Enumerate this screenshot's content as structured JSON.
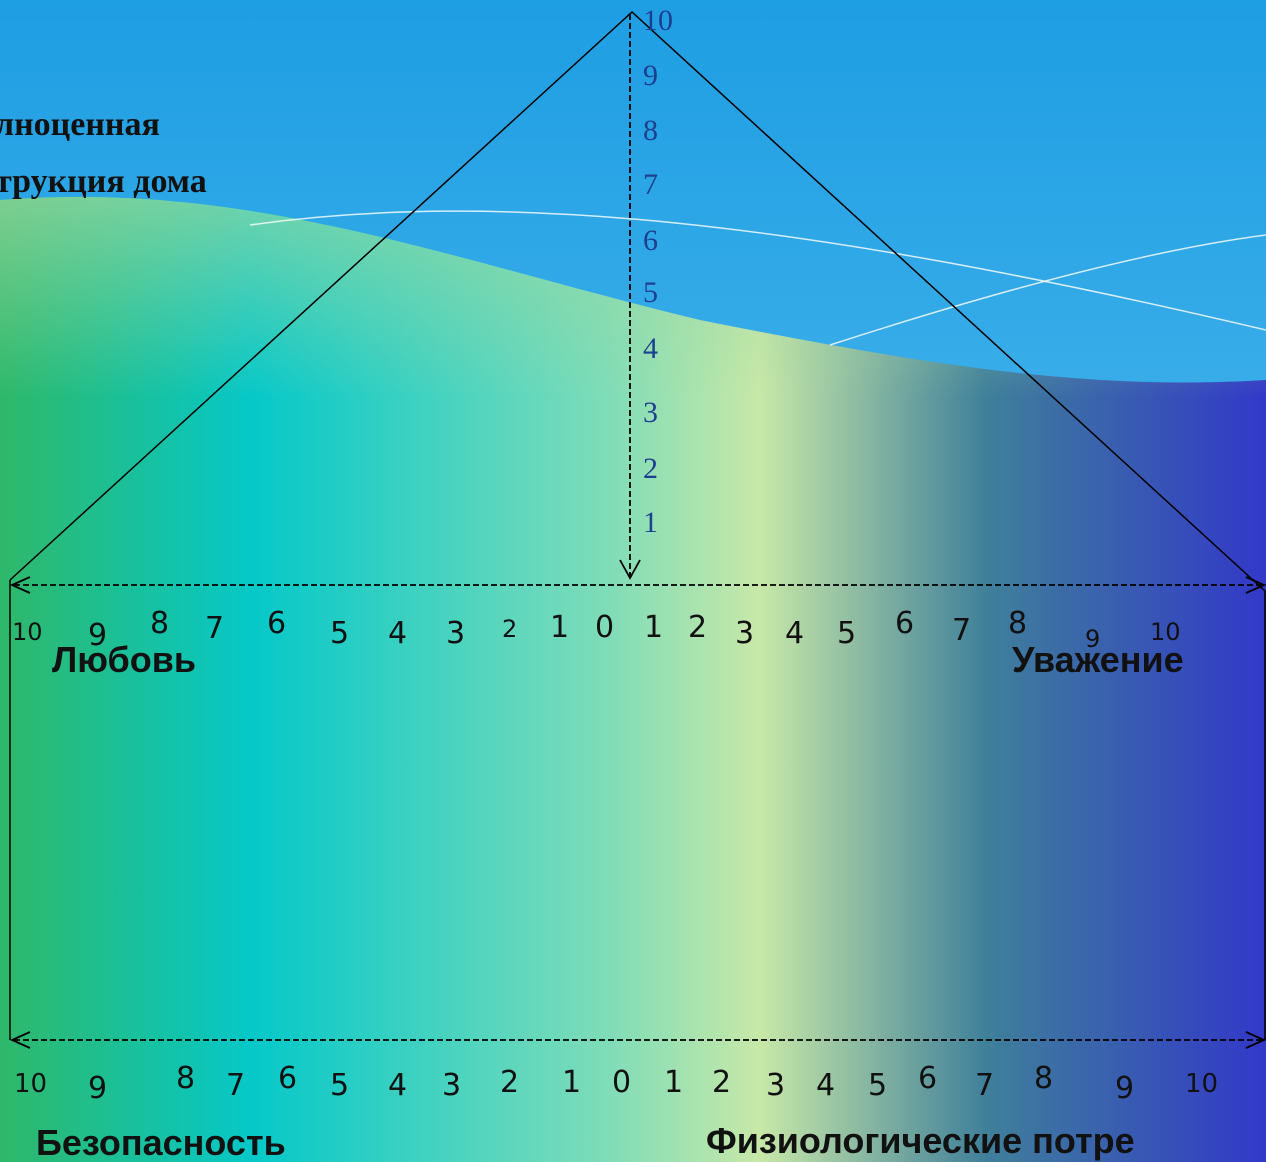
{
  "title": {
    "lines": [
      "лноценная",
      "трукция дома"
    ]
  },
  "vertical_scale": [
    10,
    9,
    8,
    7,
    6,
    5,
    4,
    3,
    2,
    1
  ],
  "top_scale": [
    10,
    9,
    8,
    7,
    6,
    5,
    4,
    3,
    2,
    1,
    0,
    1,
    2,
    3,
    4,
    5,
    6,
    7,
    8,
    9,
    10
  ],
  "bottom_scale": [
    10,
    9,
    8,
    7,
    6,
    5,
    4,
    3,
    2,
    1,
    0,
    1,
    2,
    3,
    4,
    5,
    6,
    7,
    8,
    9,
    10
  ],
  "labels": {
    "top_left": "Любовь",
    "top_right": "Уважение",
    "bottom_left": "Безопасность",
    "bottom_right": "Физиологические потре"
  }
}
